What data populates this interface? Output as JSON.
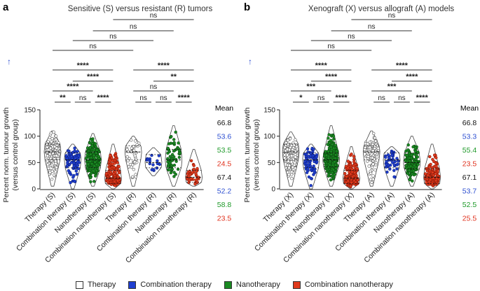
{
  "chart_data": [
    {
      "type": "violin",
      "panel_label": "a",
      "title": "Sensitive (S) versus resistant (R) tumors",
      "ylabel_lines": [
        "Percent norm. tumour growth",
        "(versus control group)"
      ],
      "ylim": [
        0,
        150
      ],
      "yticks": [
        0,
        50,
        100,
        150
      ],
      "arrow": "↑",
      "categories": [
        "Therapy (S)",
        "Combination therapy (S)",
        "Nanotherapy (S)",
        "Combination nanotherapy (S)",
        "Therapy (R)",
        "Combination therapy (R)",
        "Nanotherapy (R)",
        "Combination nanotherapy (R)"
      ],
      "series": [
        {
          "name": "Therapy (S)",
          "group": "Therapy",
          "n": 180,
          "min": 5,
          "max": 110,
          "median": 70,
          "q1": 55,
          "q3": 85
        },
        {
          "name": "Combination therapy (S)",
          "group": "Combination therapy",
          "n": 90,
          "min": 0,
          "max": 85,
          "median": 55,
          "q1": 40,
          "q3": 68
        },
        {
          "name": "Nanotherapy (S)",
          "group": "Nanotherapy",
          "n": 200,
          "min": 5,
          "max": 105,
          "median": 55,
          "q1": 40,
          "q3": 70
        },
        {
          "name": "Combination nanotherapy (S)",
          "group": "Combination nanotherapy",
          "n": 200,
          "min": 0,
          "max": 85,
          "median": 20,
          "q1": 10,
          "q3": 35
        },
        {
          "name": "Therapy (R)",
          "group": "Therapy",
          "n": 45,
          "min": 5,
          "max": 100,
          "median": 70,
          "q1": 55,
          "q3": 82
        },
        {
          "name": "Combination therapy (R)",
          "group": "Combination therapy",
          "n": 16,
          "min": 25,
          "max": 78,
          "median": 50,
          "q1": 40,
          "q3": 65
        },
        {
          "name": "Nanotherapy (R)",
          "group": "Nanotherapy",
          "n": 60,
          "min": 5,
          "max": 120,
          "median": 55,
          "q1": 40,
          "q3": 75
        },
        {
          "name": "Combination nanotherapy (R)",
          "group": "Combination nanotherapy",
          "n": 40,
          "min": 5,
          "max": 75,
          "median": 22,
          "q1": 12,
          "q3": 35
        }
      ],
      "means_header": "Mean",
      "means": [
        {
          "value": "66.8",
          "color": "#111111"
        },
        {
          "value": "53.6",
          "color": "#2d4fd1"
        },
        {
          "value": "53.5",
          "color": "#1f9a2a"
        },
        {
          "value": "24.5",
          "color": "#e0321e"
        },
        {
          "value": "67.4",
          "color": "#111111"
        },
        {
          "value": "52.2",
          "color": "#2d4fd1"
        },
        {
          "value": "58.8",
          "color": "#1f9a2a"
        },
        {
          "value": "23.5",
          "color": "#e0321e"
        }
      ],
      "comparisons": [
        {
          "from": 0,
          "to": 4,
          "label": "ns"
        },
        {
          "from": 1,
          "to": 5,
          "label": "ns"
        },
        {
          "from": 2,
          "to": 6,
          "label": "ns"
        },
        {
          "from": 3,
          "to": 7,
          "label": "ns"
        },
        {
          "from": 0,
          "to": 3,
          "label": "****"
        },
        {
          "from": 1,
          "to": 3,
          "label": "****"
        },
        {
          "from": 0,
          "to": 2,
          "label": "****"
        },
        {
          "from": 0,
          "to": 1,
          "label": "**"
        },
        {
          "from": 1,
          "to": 2,
          "label": "ns"
        },
        {
          "from": 2,
          "to": 3,
          "label": "****"
        },
        {
          "from": 4,
          "to": 7,
          "label": "****"
        },
        {
          "from": 5,
          "to": 7,
          "label": "**"
        },
        {
          "from": 4,
          "to": 6,
          "label": "ns"
        },
        {
          "from": 4,
          "to": 5,
          "label": "ns"
        },
        {
          "from": 5,
          "to": 6,
          "label": "ns"
        },
        {
          "from": 6,
          "to": 7,
          "label": "****"
        }
      ]
    },
    {
      "type": "violin",
      "panel_label": "b",
      "title": "Xenograft (X) versus allograft (A) models",
      "ylabel_lines": [
        "Percent norm. tumour growth",
        "(versus control group)"
      ],
      "ylim": [
        0,
        150
      ],
      "yticks": [
        0,
        50,
        100,
        150
      ],
      "arrow": "↑",
      "categories": [
        "Therapy (X)",
        "Combination therapy (X)",
        "Nanotherapy (X)",
        "Combination nanotherapy (X)",
        "Therapy (A)",
        "Combination therapy (A)",
        "Nanotherapy (A)",
        "Combination nanotherapy (A)"
      ],
      "series": [
        {
          "name": "Therapy (X)",
          "group": "Therapy",
          "n": 170,
          "min": 5,
          "max": 108,
          "median": 70,
          "q1": 55,
          "q3": 85
        },
        {
          "name": "Combination therapy (X)",
          "group": "Combination therapy",
          "n": 70,
          "min": 0,
          "max": 85,
          "median": 55,
          "q1": 40,
          "q3": 68
        },
        {
          "name": "Nanotherapy (X)",
          "group": "Nanotherapy",
          "n": 220,
          "min": 5,
          "max": 120,
          "median": 55,
          "q1": 42,
          "q3": 68
        },
        {
          "name": "Combination nanotherapy (X)",
          "group": "Combination nanotherapy",
          "n": 170,
          "min": 0,
          "max": 80,
          "median": 20,
          "q1": 10,
          "q3": 35
        },
        {
          "name": "Therapy (A)",
          "group": "Therapy",
          "n": 110,
          "min": 5,
          "max": 110,
          "median": 70,
          "q1": 55,
          "q3": 82
        },
        {
          "name": "Combination therapy (A)",
          "group": "Combination therapy",
          "n": 40,
          "min": 5,
          "max": 80,
          "median": 55,
          "q1": 40,
          "q3": 68
        },
        {
          "name": "Nanotherapy (A)",
          "group": "Nanotherapy",
          "n": 120,
          "min": 5,
          "max": 100,
          "median": 50,
          "q1": 38,
          "q3": 68
        },
        {
          "name": "Combination nanotherapy (A)",
          "group": "Combination nanotherapy",
          "n": 130,
          "min": 0,
          "max": 85,
          "median": 22,
          "q1": 10,
          "q3": 38
        }
      ],
      "means_header": "Mean",
      "means": [
        {
          "value": "66.8",
          "color": "#111111"
        },
        {
          "value": "53.3",
          "color": "#2d4fd1"
        },
        {
          "value": "55.4",
          "color": "#1f9a2a"
        },
        {
          "value": "23.5",
          "color": "#e0321e"
        },
        {
          "value": "67.1",
          "color": "#111111"
        },
        {
          "value": "53.7",
          "color": "#2d4fd1"
        },
        {
          "value": "52.5",
          "color": "#1f9a2a"
        },
        {
          "value": "25.5",
          "color": "#e0321e"
        }
      ],
      "comparisons": [
        {
          "from": 0,
          "to": 4,
          "label": "ns"
        },
        {
          "from": 1,
          "to": 5,
          "label": "ns"
        },
        {
          "from": 2,
          "to": 6,
          "label": "ns"
        },
        {
          "from": 3,
          "to": 7,
          "label": "ns"
        },
        {
          "from": 0,
          "to": 3,
          "label": "****"
        },
        {
          "from": 1,
          "to": 3,
          "label": "****"
        },
        {
          "from": 0,
          "to": 2,
          "label": "***"
        },
        {
          "from": 0,
          "to": 1,
          "label": "*"
        },
        {
          "from": 1,
          "to": 2,
          "label": "ns"
        },
        {
          "from": 2,
          "to": 3,
          "label": "****"
        },
        {
          "from": 4,
          "to": 7,
          "label": "****"
        },
        {
          "from": 5,
          "to": 7,
          "label": "****"
        },
        {
          "from": 4,
          "to": 6,
          "label": "***"
        },
        {
          "from": 4,
          "to": 5,
          "label": "ns"
        },
        {
          "from": 5,
          "to": 6,
          "label": "ns"
        },
        {
          "from": 6,
          "to": 7,
          "label": "****"
        }
      ]
    }
  ],
  "group_colors": {
    "Therapy": {
      "fill": "#ffffff",
      "stroke": "#555555"
    },
    "Combination therapy": {
      "fill": "#1f3fd0",
      "stroke": "#0d1f80"
    },
    "Nanotherapy": {
      "fill": "#1a8a22",
      "stroke": "#0b4a10"
    },
    "Combination nanotherapy": {
      "fill": "#e03a1c",
      "stroke": "#8a1a0a"
    }
  },
  "legend": [
    {
      "label": "Therapy",
      "color": "#ffffff"
    },
    {
      "label": "Combination therapy",
      "color": "#1f3fd0"
    },
    {
      "label": "Nanotherapy",
      "color": "#1a8a22"
    },
    {
      "label": "Combination nanotherapy",
      "color": "#e03a1c"
    }
  ]
}
